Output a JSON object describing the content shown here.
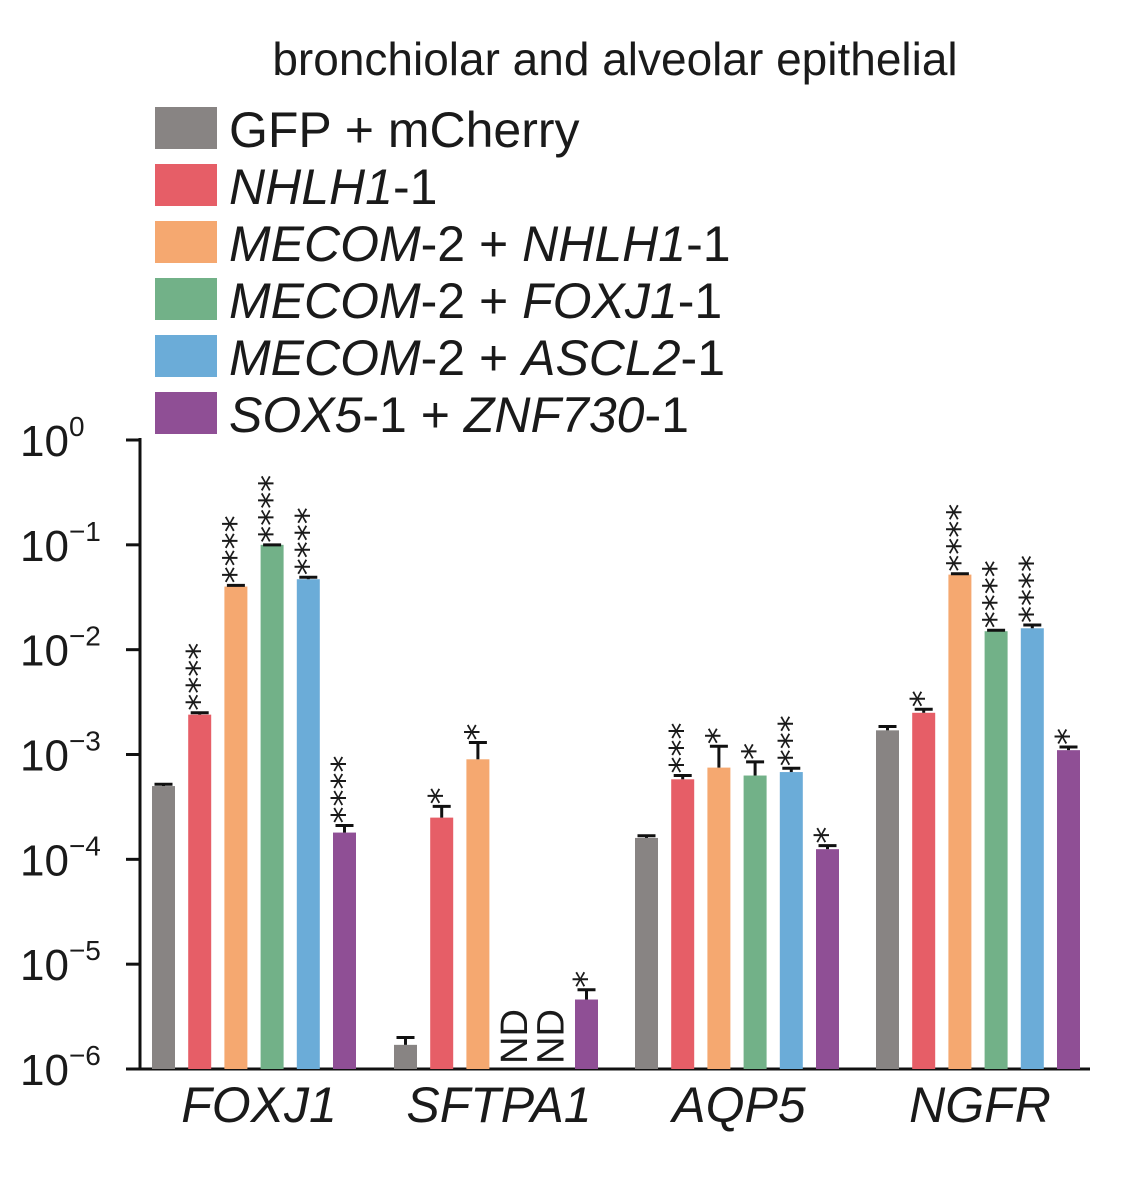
{
  "chart_data": {
    "type": "bar",
    "title": "bronchiolar and alveolar epithelial",
    "categories": [
      "FOXJ1",
      "SFTPA1",
      "AQP5",
      "NGFR"
    ],
    "yscale": "log",
    "ylim": [
      1e-06,
      1
    ],
    "yticks": [
      {
        "base": "10",
        "exp": "0",
        "value": 1
      },
      {
        "base": "10",
        "exp": "−1",
        "value": 0.1
      },
      {
        "base": "10",
        "exp": "−2",
        "value": 0.01
      },
      {
        "base": "10",
        "exp": "−3",
        "value": 0.001
      },
      {
        "base": "10",
        "exp": "−4",
        "value": 0.0001
      },
      {
        "base": "10",
        "exp": "−5",
        "value": 1e-05
      },
      {
        "base": "10",
        "exp": "−6",
        "value": 1e-06
      }
    ],
    "legend_position": "top",
    "series": [
      {
        "color": "#888483",
        "label_parts": [
          {
            "t": "GFP + mCherry",
            "i": false
          }
        ],
        "values": [
          0.0005,
          1.7e-06,
          0.00016,
          0.0017
        ],
        "err_upper": [
          0.00052,
          2e-06,
          0.000168,
          0.00185
        ],
        "sig": [
          "",
          "",
          "",
          ""
        ],
        "nd": [
          false,
          false,
          false,
          false
        ]
      },
      {
        "color": "#e65e67",
        "label_parts": [
          {
            "t": "NHLH1",
            "i": true
          },
          {
            "t": "-1",
            "i": false
          }
        ],
        "values": [
          0.0024,
          0.00025,
          0.00058,
          0.0025
        ],
        "err_upper": [
          0.0025,
          0.00032,
          0.00063,
          0.0027
        ],
        "sig": [
          "****",
          "*",
          "***",
          "*"
        ],
        "nd": [
          false,
          false,
          false,
          false
        ]
      },
      {
        "color": "#f5a870",
        "label_parts": [
          {
            "t": "MECOM",
            "i": true
          },
          {
            "t": "-2 + ",
            "i": false
          },
          {
            "t": "NHLH1",
            "i": true
          },
          {
            "t": "-1",
            "i": false
          }
        ],
        "values": [
          0.04,
          0.0009,
          0.00075,
          0.052
        ],
        "err_upper": [
          0.041,
          0.0013,
          0.0012,
          0.053
        ],
        "sig": [
          "****",
          "*",
          "*",
          "****"
        ],
        "nd": [
          false,
          false,
          false,
          false
        ]
      },
      {
        "color": "#72b188",
        "label_parts": [
          {
            "t": "MECOM",
            "i": true
          },
          {
            "t": "-2 + ",
            "i": false
          },
          {
            "t": "FOXJ1",
            "i": true
          },
          {
            "t": "-1",
            "i": false
          }
        ],
        "values": [
          0.1,
          null,
          0.00063,
          0.015
        ],
        "err_upper": [
          0.1,
          null,
          0.00085,
          0.0153
        ],
        "sig": [
          "****",
          "",
          "*",
          "****"
        ],
        "nd": [
          false,
          true,
          false,
          false
        ]
      },
      {
        "color": "#6bacd8",
        "label_parts": [
          {
            "t": "MECOM",
            "i": true
          },
          {
            "t": "-2 + ",
            "i": false
          },
          {
            "t": "ASCL2",
            "i": true
          },
          {
            "t": "-1",
            "i": false
          }
        ],
        "values": [
          0.047,
          null,
          0.00068,
          0.016
        ],
        "err_upper": [
          0.049,
          null,
          0.00074,
          0.0172
        ],
        "sig": [
          "****",
          "",
          "***",
          "****"
        ],
        "nd": [
          false,
          true,
          false,
          false
        ]
      },
      {
        "color": "#8f4f95",
        "label_parts": [
          {
            "t": "SOX5",
            "i": true
          },
          {
            "t": "-1 + ",
            "i": false
          },
          {
            "t": "ZNF730",
            "i": true
          },
          {
            "t": "-1",
            "i": false
          }
        ],
        "values": [
          0.00018,
          4.6e-06,
          0.000125,
          0.0011
        ],
        "err_upper": [
          0.00021,
          5.7e-06,
          0.000135,
          0.00118
        ],
        "sig": [
          "****",
          "*",
          "*",
          "*"
        ],
        "nd": [
          false,
          false,
          false,
          false
        ]
      }
    ],
    "nd_label": "ND"
  }
}
